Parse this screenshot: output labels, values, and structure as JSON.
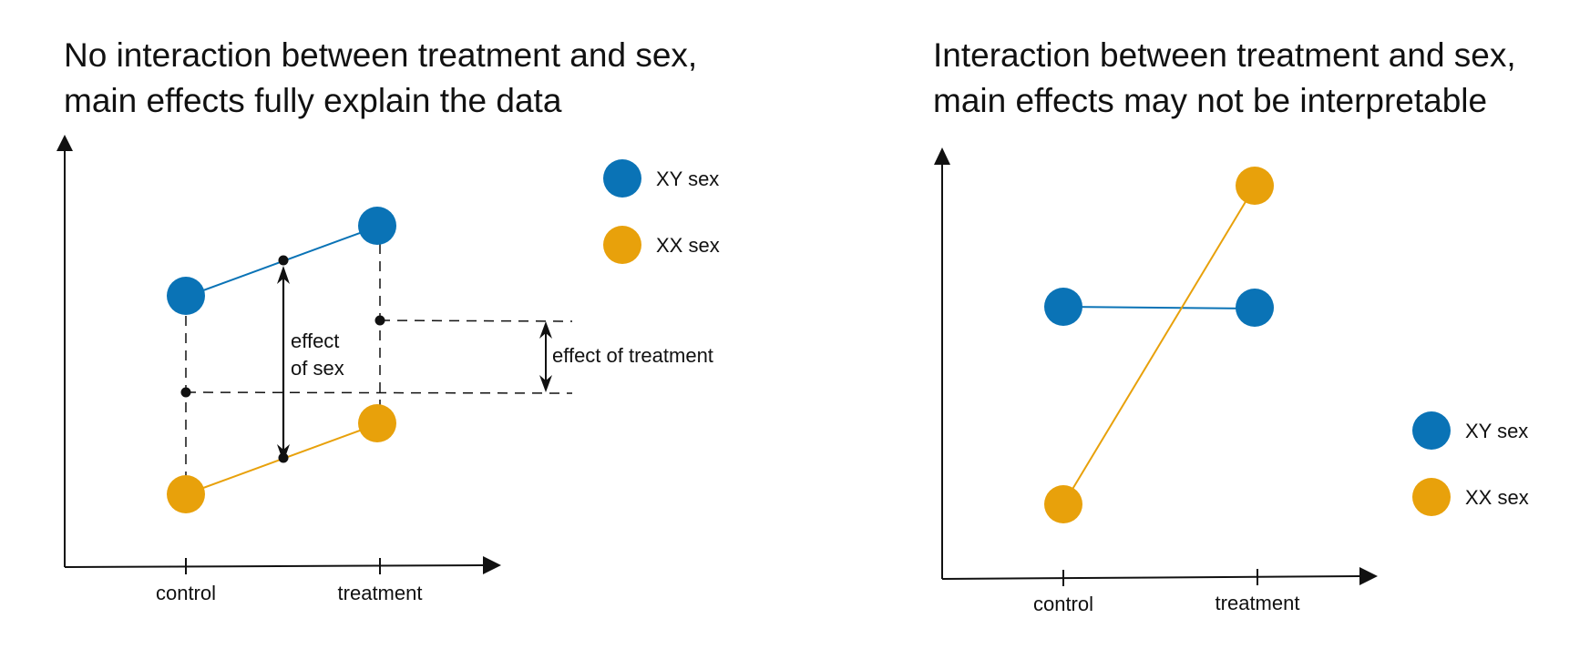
{
  "colors": {
    "xy": "#0a73b6",
    "xx": "#e8a10b",
    "axis": "#111111"
  },
  "left_panel": {
    "title_line1": "No interaction between treatment and sex,",
    "title_line2": "main effects fully explain the data",
    "effect_of_sex_line1": "effect",
    "effect_of_sex_line2": "of sex",
    "effect_of_treatment": "effect of treatment"
  },
  "right_panel": {
    "title_line1": "Interaction between treatment and sex,",
    "title_line2": "main effects may not be interpretable"
  },
  "chart_data": [
    {
      "type": "line",
      "categories": [
        "control",
        "treatment"
      ],
      "series": [
        {
          "name": "XY sex",
          "values": [
            2.55,
            3.0
          ],
          "color": "#0a73b6"
        },
        {
          "name": "XX sex",
          "values": [
            0.0,
            0.45
          ],
          "color": "#e8a10b"
        }
      ],
      "ylim": [
        -0.5,
        3.8
      ],
      "legend": [
        "XY sex",
        "XX sex"
      ]
    },
    {
      "type": "line",
      "categories": [
        "control",
        "treatment"
      ],
      "series": [
        {
          "name": "XY sex",
          "values": [
            2.2,
            2.2
          ],
          "color": "#0a73b6"
        },
        {
          "name": "XX sex",
          "values": [
            0.0,
            3.5
          ],
          "color": "#e8a10b"
        }
      ],
      "ylim": [
        -0.8,
        4.5
      ],
      "legend": [
        "XY sex",
        "XX sex"
      ]
    }
  ]
}
